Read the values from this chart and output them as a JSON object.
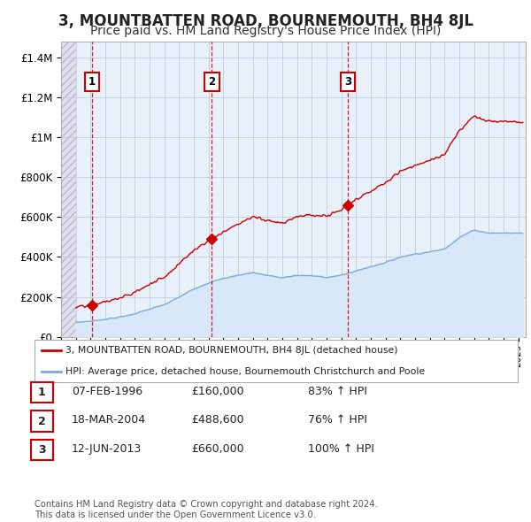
{
  "title": "3, MOUNTBATTEN ROAD, BOURNEMOUTH, BH4 8JL",
  "subtitle": "Price paid vs. HM Land Registry's House Price Index (HPI)",
  "title_fontsize": 12,
  "subtitle_fontsize": 10,
  "ylabel_ticks": [
    "£0",
    "£200K",
    "£400K",
    "£600K",
    "£800K",
    "£1M",
    "£1.2M",
    "£1.4M"
  ],
  "ytick_values": [
    0,
    200000,
    400000,
    600000,
    800000,
    1000000,
    1200000,
    1400000
  ],
  "ylim": [
    0,
    1480000
  ],
  "xlim_start": 1994.0,
  "xlim_end": 2025.5,
  "data_start": 1995.0,
  "sales": [
    {
      "date": 1996.1,
      "price": 160000,
      "label": "1"
    },
    {
      "date": 2004.22,
      "price": 488600,
      "label": "2"
    },
    {
      "date": 2013.45,
      "price": 660000,
      "label": "3"
    }
  ],
  "sale_color": "#cc0000",
  "hpi_line_color": "#7aaadd",
  "hpi_fill_color": "#d8e8f8",
  "legend_label_price": "3, MOUNTBATTEN ROAD, BOURNEMOUTH, BH4 8JL (detached house)",
  "legend_label_hpi": "HPI: Average price, detached house, Bournemouth Christchurch and Poole",
  "table_rows": [
    {
      "num": "1",
      "date": "07-FEB-1996",
      "price": "£160,000",
      "pct": "83% ↑ HPI"
    },
    {
      "num": "2",
      "date": "18-MAR-2004",
      "price": "£488,600",
      "pct": "76% ↑ HPI"
    },
    {
      "num": "3",
      "date": "12-JUN-2013",
      "price": "£660,000",
      "pct": "100% ↑ HPI"
    }
  ],
  "footer": "Contains HM Land Registry data © Crown copyright and database right 2024.\nThis data is licensed under the Open Government Licence v3.0.",
  "bg_color": "#ffffff",
  "plot_bg_color": "#e8f0fa",
  "grid_color": "#c0cce0",
  "hatch_bg_color": "#d8d8e8"
}
